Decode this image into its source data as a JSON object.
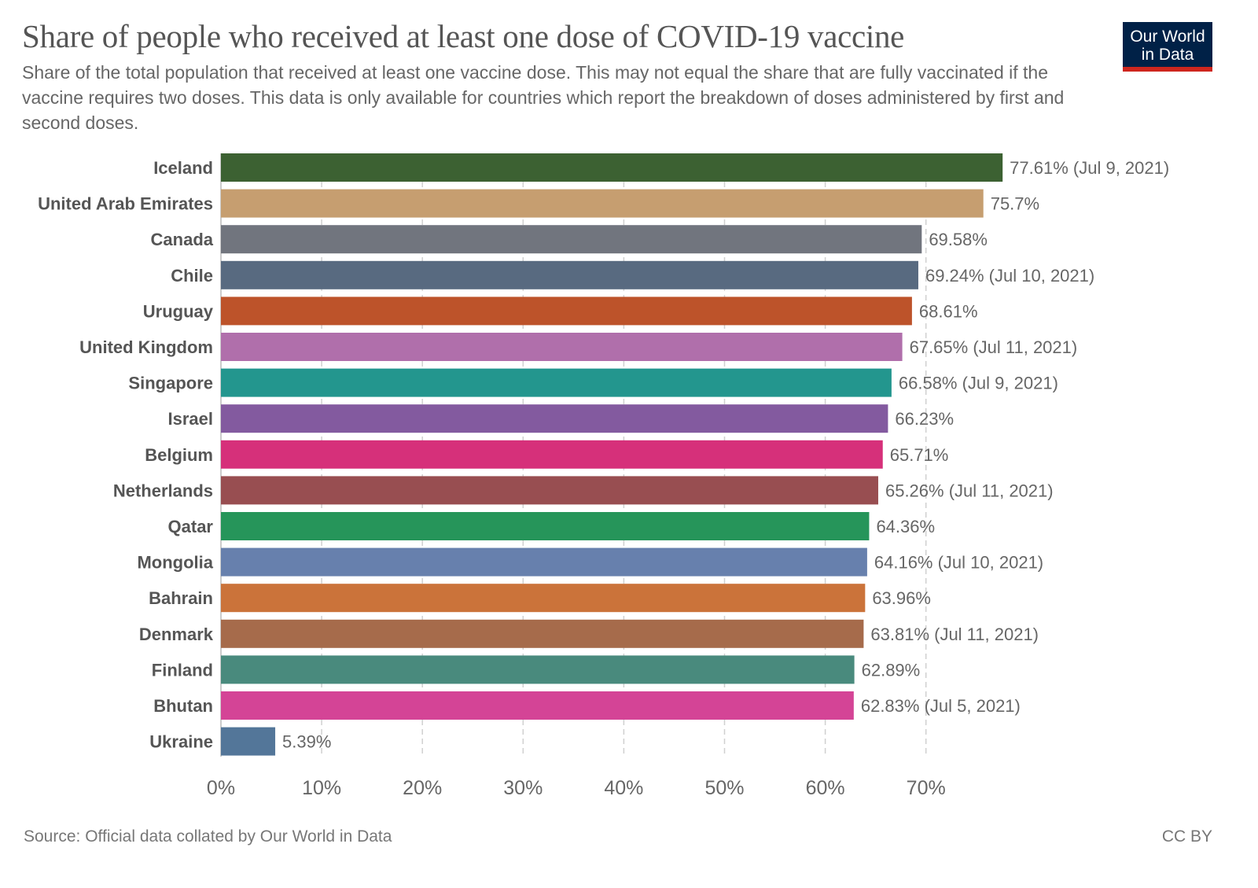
{
  "header": {
    "title": "Share of people who received at least one dose of COVID-19 vaccine",
    "subtitle": "Share of the total population that received at least one vaccine dose. This may not equal the share that are fully vaccinated if the vaccine requires two doses. This data is only available for countries which report the breakdown of doses administered by first and second doses.",
    "logo_line1": "Our World",
    "logo_line2": "in Data"
  },
  "footer": {
    "source": "Source: Official data collated by Our World in Data",
    "license": "CC BY"
  },
  "colors": {
    "logo_bg": "#002147",
    "logo_accent": "#ce261e",
    "text": "#555555",
    "grid": "#cccccc"
  },
  "chart_data": {
    "type": "bar",
    "orientation": "horizontal",
    "title": "Share of people who received at least one dose of COVID-19 vaccine",
    "xlabel": "",
    "ylabel": "",
    "xlim": [
      0,
      80
    ],
    "grid": "vertical dashed",
    "x_ticks": [
      {
        "value": 0,
        "label": "0%"
      },
      {
        "value": 10,
        "label": "10%"
      },
      {
        "value": 20,
        "label": "20%"
      },
      {
        "value": 30,
        "label": "30%"
      },
      {
        "value": 40,
        "label": "40%"
      },
      {
        "value": 50,
        "label": "50%"
      },
      {
        "value": 60,
        "label": "60%"
      },
      {
        "value": 70,
        "label": "70%"
      }
    ],
    "categories": [
      "Iceland",
      "United Arab Emirates",
      "Canada",
      "Chile",
      "Uruguay",
      "United Kingdom",
      "Singapore",
      "Israel",
      "Belgium",
      "Netherlands",
      "Qatar",
      "Mongolia",
      "Bahrain",
      "Denmark",
      "Finland",
      "Bhutan",
      "Ukraine"
    ],
    "values": [
      77.61,
      75.7,
      69.58,
      69.24,
      68.61,
      67.65,
      66.58,
      66.23,
      65.71,
      65.26,
      64.36,
      64.16,
      63.96,
      63.81,
      62.89,
      62.83,
      5.39
    ],
    "labels": [
      "77.61% (Jul 9, 2021)",
      "75.7%",
      "69.58%",
      "69.24% (Jul 10, 2021)",
      "68.61%",
      "67.65% (Jul 11, 2021)",
      "66.58% (Jul 9, 2021)",
      "66.23%",
      "65.71%",
      "65.26% (Jul 11, 2021)",
      "64.36%",
      "64.16% (Jul 10, 2021)",
      "63.96%",
      "63.81% (Jul 11, 2021)",
      "62.89%",
      "62.83% (Jul 5, 2021)",
      "5.39%"
    ],
    "bar_colors": [
      "#3c6132",
      "#c69e70",
      "#71757e",
      "#586a80",
      "#bd532a",
      "#b06fab",
      "#23968e",
      "#835a9f",
      "#d6307a",
      "#984e51",
      "#26955a",
      "#6780ad",
      "#cb733a",
      "#a66b4b",
      "#498a7d",
      "#d44496",
      "#537699"
    ]
  }
}
